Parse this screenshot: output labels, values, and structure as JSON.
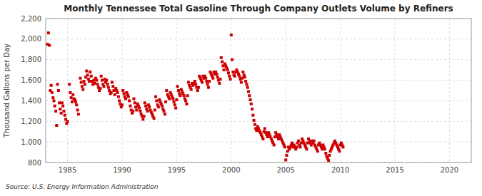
{
  "chart_data": {
    "type": "scatter",
    "title": "Monthly Tennessee Total Gasoline Through Company Outlets Volume by Refiners",
    "y_label": "Thousand Gallons per Day",
    "annotations": [
      "Source: U.S. Energy Information Administration"
    ],
    "color": "#cc0000",
    "marker": "square",
    "grid": true,
    "xlim": [
      1983.0,
      2022.0
    ],
    "ylim": [
      800,
      2200
    ],
    "xticks": [
      1985,
      1990,
      1995,
      2000,
      2005,
      2010,
      2015,
      2020
    ],
    "yticks": [
      800,
      {
        "value": 1000,
        "label": "1,000"
      },
      {
        "value": 1200,
        "label": "1,200"
      },
      {
        "value": 1400,
        "label": "1,400"
      },
      {
        "value": 1600,
        "label": "1,600"
      },
      {
        "value": 1800,
        "label": "1,800"
      },
      {
        "value": 2000,
        "label": "2,000"
      },
      {
        "value": 2200,
        "label": "2,200"
      }
    ],
    "x": [
      1983.17,
      1983.25,
      1983.33,
      1983.42,
      1983.5,
      1983.58,
      1983.67,
      1983.75,
      1983.83,
      1983.92,
      1984.0,
      1984.08,
      1984.17,
      1984.25,
      1984.33,
      1984.42,
      1984.5,
      1984.58,
      1984.67,
      1984.75,
      1984.83,
      1984.92,
      1985.0,
      1985.17,
      1985.25,
      1985.33,
      1985.42,
      1985.5,
      1985.58,
      1985.67,
      1985.75,
      1985.83,
      1985.92,
      1986.0,
      1986.17,
      1986.25,
      1986.33,
      1986.42,
      1986.5,
      1986.58,
      1986.67,
      1986.75,
      1986.83,
      1986.92,
      1987.0,
      1987.08,
      1987.17,
      1987.25,
      1987.33,
      1987.42,
      1987.5,
      1987.58,
      1987.67,
      1987.75,
      1987.83,
      1987.92,
      1988.0,
      1988.08,
      1988.17,
      1988.25,
      1988.33,
      1988.42,
      1988.5,
      1988.58,
      1988.67,
      1988.75,
      1988.83,
      1988.92,
      1989.0,
      1989.08,
      1989.17,
      1989.25,
      1989.33,
      1989.42,
      1989.5,
      1989.58,
      1989.67,
      1989.75,
      1989.83,
      1989.92,
      1990.0,
      1990.08,
      1990.17,
      1990.25,
      1990.33,
      1990.42,
      1990.5,
      1990.58,
      1990.67,
      1990.75,
      1990.83,
      1990.92,
      1991.0,
      1991.08,
      1991.17,
      1991.25,
      1991.33,
      1991.42,
      1991.5,
      1991.58,
      1991.67,
      1991.75,
      1991.83,
      1991.92,
      1992.0,
      1992.08,
      1992.17,
      1992.25,
      1992.33,
      1992.42,
      1992.5,
      1992.58,
      1992.67,
      1992.75,
      1992.83,
      1992.92,
      1993.0,
      1993.08,
      1993.17,
      1993.25,
      1993.33,
      1993.42,
      1993.5,
      1993.58,
      1993.67,
      1993.75,
      1993.83,
      1993.92,
      1994.0,
      1994.08,
      1994.17,
      1994.25,
      1994.33,
      1994.42,
      1994.5,
      1994.58,
      1994.67,
      1994.75,
      1994.83,
      1994.92,
      1995.0,
      1995.08,
      1995.17,
      1995.25,
      1995.33,
      1995.42,
      1995.5,
      1995.58,
      1995.67,
      1995.75,
      1995.83,
      1995.92,
      1996.0,
      1996.08,
      1996.17,
      1996.25,
      1996.33,
      1996.42,
      1996.5,
      1996.58,
      1996.67,
      1996.75,
      1996.83,
      1996.92,
      1997.0,
      1997.08,
      1997.17,
      1997.25,
      1997.33,
      1997.42,
      1997.5,
      1997.58,
      1997.67,
      1997.75,
      1997.83,
      1997.92,
      1998.0,
      1998.08,
      1998.17,
      1998.25,
      1998.33,
      1998.42,
      1998.5,
      1998.58,
      1998.67,
      1998.75,
      1998.83,
      1998.92,
      1999.0,
      1999.08,
      1999.17,
      1999.25,
      1999.33,
      1999.42,
      1999.5,
      1999.58,
      1999.67,
      1999.75,
      1999.83,
      1999.92,
      2000.0,
      2000.08,
      2000.17,
      2000.25,
      2000.33,
      2000.42,
      2000.5,
      2000.58,
      2000.67,
      2000.75,
      2000.83,
      2000.92,
      2001.0,
      2001.08,
      2001.17,
      2001.25,
      2001.33,
      2001.42,
      2001.5,
      2001.58,
      2001.67,
      2001.75,
      2001.83,
      2001.92,
      2002.0,
      2002.08,
      2002.17,
      2002.25,
      2002.33,
      2002.42,
      2002.5,
      2002.58,
      2002.67,
      2002.75,
      2002.83,
      2002.92,
      2003.0,
      2003.08,
      2003.17,
      2003.25,
      2003.33,
      2003.42,
      2003.5,
      2003.58,
      2003.67,
      2003.75,
      2003.83,
      2003.92,
      2004.0,
      2004.08,
      2004.17,
      2004.25,
      2004.33,
      2004.42,
      2004.5,
      2004.58,
      2004.67,
      2004.75,
      2004.83,
      2004.92,
      2005.0,
      2005.08,
      2005.17,
      2005.25,
      2005.33,
      2005.42,
      2005.5,
      2005.58,
      2005.67,
      2005.75,
      2005.83,
      2005.92,
      2006.0,
      2006.08,
      2006.17,
      2006.25,
      2006.33,
      2006.42,
      2006.5,
      2006.58,
      2006.67,
      2006.75,
      2006.83,
      2006.92,
      2007.0,
      2007.08,
      2007.17,
      2007.25,
      2007.33,
      2007.42,
      2007.5,
      2007.58,
      2007.67,
      2007.75,
      2007.83,
      2007.92,
      2008.0,
      2008.08,
      2008.17,
      2008.25,
      2008.33,
      2008.42,
      2008.5,
      2008.58,
      2008.67,
      2008.75,
      2008.83,
      2008.92,
      2009.0,
      2009.08,
      2009.17,
      2009.25,
      2009.33,
      2009.42,
      2009.5,
      2009.58,
      2009.67,
      2009.75,
      2009.83,
      2009.92,
      2010.0,
      2010.08,
      2010.17,
      2010.25
    ],
    "values": [
      1950,
      2060,
      1940,
      1500,
      1550,
      1480,
      1430,
      1400,
      1350,
      1300,
      1160,
      1560,
      1500,
      1380,
      1320,
      1280,
      1380,
      1350,
      1300,
      1260,
      1220,
      1180,
      1200,
      1560,
      1480,
      1430,
      1390,
      1460,
      1420,
      1410,
      1390,
      1360,
      1310,
      1270,
      1620,
      1580,
      1540,
      1510,
      1590,
      1560,
      1630,
      1690,
      1650,
      1610,
      1590,
      1680,
      1640,
      1590,
      1560,
      1600,
      1570,
      1620,
      1600,
      1560,
      1530,
      1500,
      1520,
      1640,
      1600,
      1560,
      1540,
      1610,
      1580,
      1600,
      1560,
      1530,
      1500,
      1470,
      1480,
      1580,
      1540,
      1500,
      1460,
      1520,
      1500,
      1480,
      1440,
      1400,
      1370,
      1340,
      1360,
      1500,
      1470,
      1440,
      1420,
      1480,
      1460,
      1440,
      1400,
      1350,
      1310,
      1280,
      1300,
      1420,
      1380,
      1340,
      1310,
      1370,
      1350,
      1330,
      1300,
      1270,
      1250,
      1220,
      1250,
      1380,
      1350,
      1320,
      1300,
      1360,
      1340,
      1310,
      1290,
      1270,
      1250,
      1230,
      1310,
      1440,
      1400,
      1360,
      1340,
      1410,
      1390,
      1370,
      1350,
      1320,
      1300,
      1270,
      1390,
      1500,
      1460,
      1440,
      1420,
      1480,
      1460,
      1440,
      1420,
      1390,
      1360,
      1330,
      1410,
      1540,
      1500,
      1470,
      1450,
      1510,
      1490,
      1470,
      1450,
      1420,
      1400,
      1370,
      1450,
      1580,
      1550,
      1530,
      1510,
      1570,
      1550,
      1570,
      1590,
      1560,
      1530,
      1500,
      1530,
      1640,
      1620,
      1600,
      1580,
      1640,
      1620,
      1640,
      1620,
      1590,
      1560,
      1530,
      1590,
      1680,
      1660,
      1640,
      1620,
      1680,
      1660,
      1680,
      1660,
      1630,
      1600,
      1570,
      1610,
      1820,
      1780,
      1740,
      1700,
      1760,
      1740,
      1720,
      1700,
      1670,
      1640,
      1610,
      2040,
      1800,
      1680,
      1650,
      1640,
      1680,
      1700,
      1680,
      1660,
      1640,
      1610,
      1580,
      1620,
      1680,
      1650,
      1630,
      1590,
      1560,
      1530,
      1490,
      1450,
      1410,
      1370,
      1320,
      1260,
      1210,
      1170,
      1130,
      1110,
      1150,
      1130,
      1110,
      1090,
      1070,
      1050,
      1030,
      1100,
      1130,
      1090,
      1070,
      1050,
      1090,
      1070,
      1050,
      1030,
      1010,
      990,
      970,
      1050,
      1090,
      1070,
      1050,
      1030,
      1070,
      1050,
      1030,
      1010,
      990,
      970,
      950,
      825,
      870,
      910,
      950,
      930,
      950,
      970,
      990,
      950,
      970,
      950,
      930,
      950,
      990,
      1010,
      970,
      950,
      990,
      1030,
      1010,
      990,
      970,
      950,
      930,
      990,
      1030,
      1010,
      990,
      970,
      1010,
      990,
      1010,
      970,
      950,
      930,
      910,
      970,
      990,
      970,
      950,
      930,
      970,
      950,
      930,
      890,
      860,
      840,
      820,
      870,
      910,
      930,
      950,
      970,
      990,
      1010,
      990,
      970,
      950,
      930,
      910,
      970,
      990,
      970,
      950
    ]
  }
}
